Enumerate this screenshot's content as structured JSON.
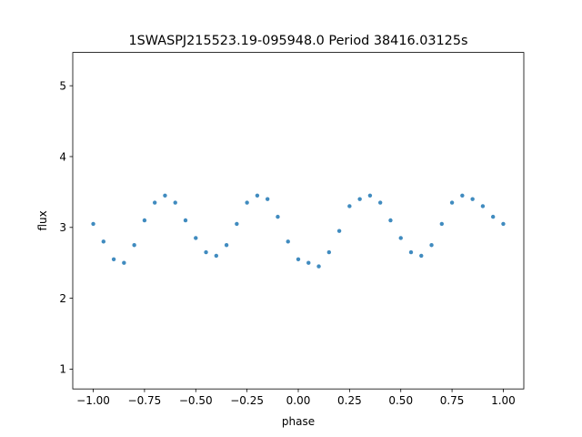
{
  "chart_data": {
    "type": "scatter",
    "title": "1SWASPJ215523.19-095948.0 Period 38416.03125s",
    "xlabel": "phase",
    "ylabel": "flux",
    "xlim": [
      -1.1,
      1.1
    ],
    "ylim": [
      0.72,
      5.47
    ],
    "xticks": [
      -1.0,
      -0.75,
      -0.5,
      -0.25,
      0.0,
      0.25,
      0.5,
      0.75,
      1.0
    ],
    "xtick_labels": [
      "−1.00",
      "−0.75",
      "−0.50",
      "−0.25",
      "0.00",
      "0.25",
      "0.50",
      "0.75",
      "1.00"
    ],
    "yticks": [
      1,
      2,
      3,
      4,
      5
    ],
    "ytick_labels": [
      "1",
      "2",
      "3",
      "4",
      "5"
    ],
    "grid": false,
    "legend": "none",
    "color": "#1f77b4",
    "series": [
      {
        "x": [
          -1.0,
          -0.95,
          -0.9,
          -0.85,
          -0.8,
          -0.75,
          -0.7,
          -0.65,
          -0.6,
          -0.55,
          -0.5,
          -0.45,
          -0.4,
          -0.35,
          -0.3,
          -0.25,
          -0.2,
          -0.15,
          -0.1,
          -0.05,
          0.0,
          0.05,
          0.1,
          0.15,
          0.2,
          0.25,
          0.3,
          0.35,
          0.4,
          0.45,
          0.5,
          0.55,
          0.6,
          0.65,
          0.7,
          0.75,
          0.8,
          0.85,
          0.9,
          0.95,
          1.0
        ],
        "y": [
          3.05,
          2.8,
          2.55,
          2.5,
          2.75,
          3.1,
          3.35,
          3.45,
          3.35,
          3.1,
          2.85,
          2.65,
          2.6,
          2.75,
          3.05,
          3.35,
          3.45,
          3.4,
          3.15,
          2.8,
          2.55,
          2.5,
          2.45,
          2.65,
          2.95,
          3.3,
          3.4,
          3.45,
          3.35,
          3.1,
          2.85,
          2.65,
          2.6,
          2.75,
          3.05,
          3.35,
          3.45,
          3.4,
          3.3,
          3.15,
          3.05
        ]
      }
    ]
  }
}
